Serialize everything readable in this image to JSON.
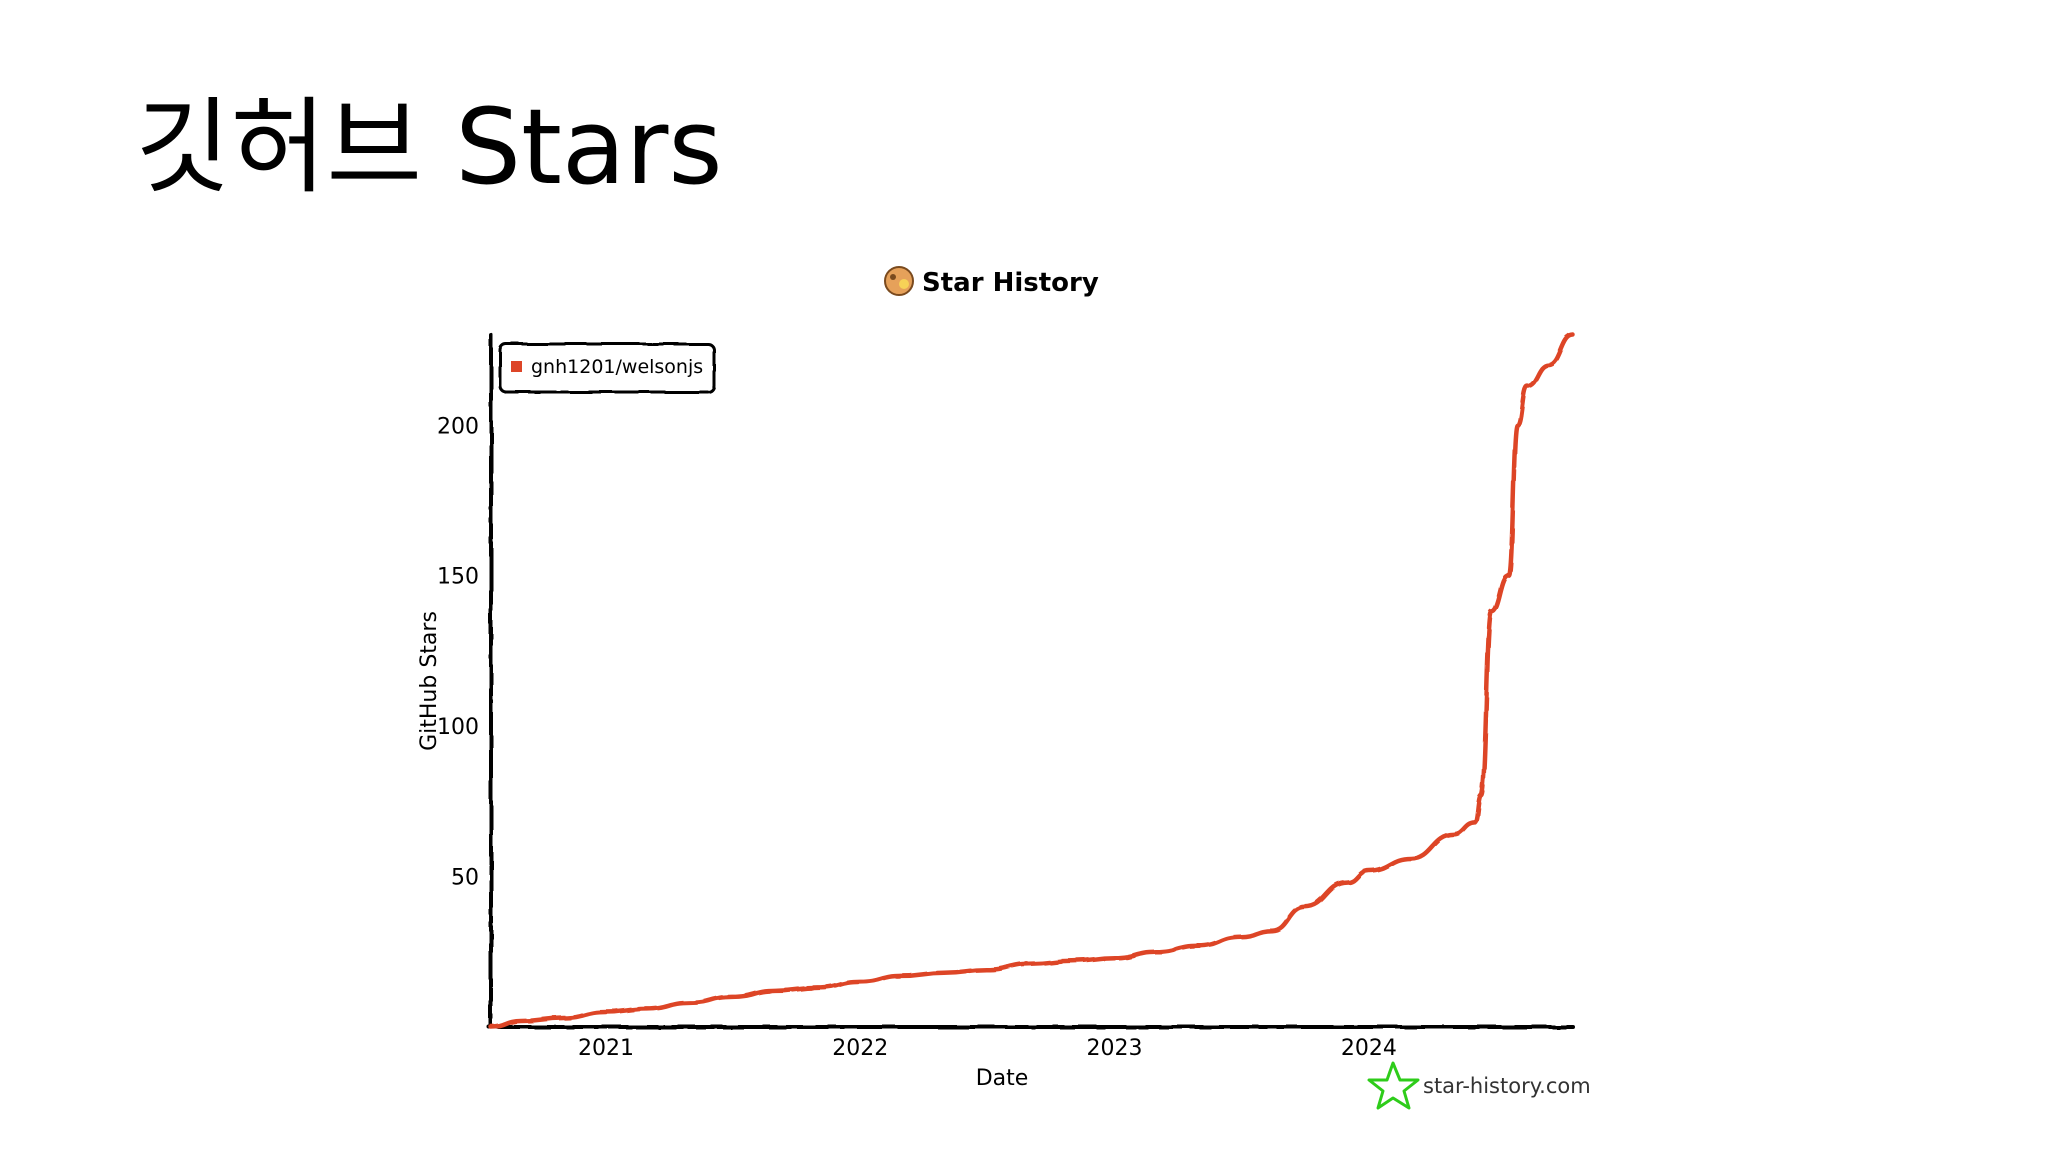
{
  "slide": {
    "title": "깃허브 Stars"
  },
  "chart_data": {
    "type": "line",
    "title": "Star History",
    "xlabel": "Date",
    "ylabel": "GitHub Stars",
    "x_ticks": [
      "2021",
      "2022",
      "2023",
      "2024"
    ],
    "y_ticks": [
      50,
      100,
      150,
      200
    ],
    "ylim": [
      0,
      230
    ],
    "grid": false,
    "legend": "top-left",
    "colors": {
      "series": "#dd4528",
      "axis": "#000000",
      "logo": "#2ecc1a"
    },
    "series": [
      {
        "name": "gnh1201/welsonjs",
        "x": [
          "2020-07-20",
          "2020-09-01",
          "2020-11-01",
          "2021-01-01",
          "2021-03-01",
          "2021-05-01",
          "2021-07-01",
          "2021-09-01",
          "2021-11-01",
          "2022-01-01",
          "2022-03-01",
          "2022-05-01",
          "2022-07-01",
          "2022-09-01",
          "2022-11-01",
          "2023-01-01",
          "2023-03-01",
          "2023-05-01",
          "2023-07-01",
          "2023-08-15",
          "2023-10-01",
          "2023-12-01",
          "2024-01-01",
          "2024-03-01",
          "2024-05-01",
          "2024-06-01",
          "2024-06-10",
          "2024-06-25",
          "2024-07-20",
          "2024-08-01",
          "2024-08-15",
          "2024-09-15",
          "2024-10-20"
        ],
        "values": [
          0,
          2,
          3,
          5,
          6,
          8,
          10,
          12,
          13,
          15,
          17,
          18,
          19,
          21,
          22,
          23,
          25,
          27,
          30,
          32,
          40,
          48,
          52,
          56,
          64,
          68,
          77,
          138,
          150,
          200,
          213,
          220,
          230
        ]
      }
    ],
    "watermark": "star-history.com"
  }
}
